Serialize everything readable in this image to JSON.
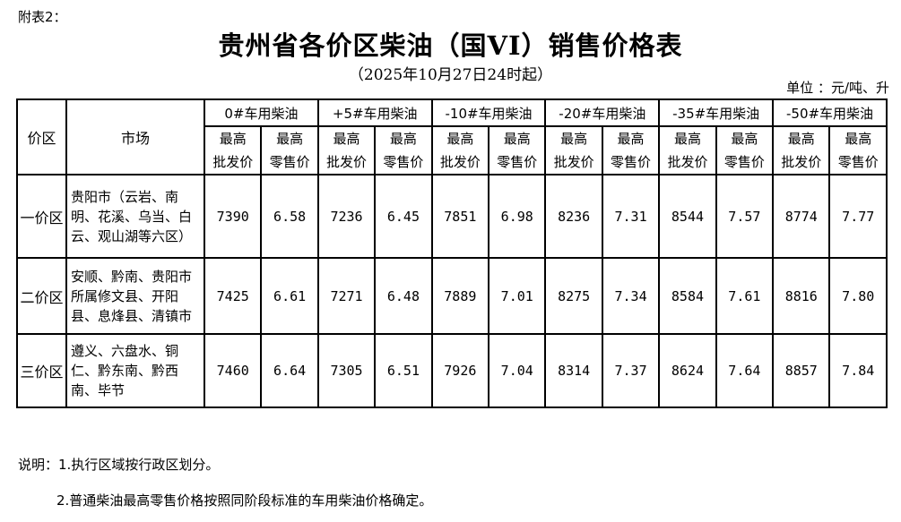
{
  "page": {
    "appendix_label": "附表2：",
    "title": "贵州省各价区柴油（国VI）销售价格表",
    "subtitle": "（2025年10月27日24时起）",
    "unit_label": "单位 ：元/吨、升"
  },
  "table": {
    "headers": {
      "zone": "价区",
      "market": "市场",
      "fuel_types": [
        "0#车用柴油",
        "+5#车用柴油",
        "-10#车用柴油",
        "-20#车用柴油",
        "-35#车用柴油",
        "-50#车用柴油"
      ],
      "sub_wholesale": "最高\n批发价",
      "sub_retail": "最高\n零售价"
    },
    "rows": [
      {
        "zone": "一价区",
        "market": "贵阳市（云岩、南明、花溪、乌当、白云、观山湖等六区）",
        "values": [
          "7390",
          "6.58",
          "7236",
          "6.45",
          "7851",
          "6.98",
          "8236",
          "7.31",
          "8544",
          "7.57",
          "8774",
          "7.77"
        ]
      },
      {
        "zone": "二价区",
        "market": "安顺、黔南、贵阳市所属修文县、开阳县、息烽县、清镇市",
        "values": [
          "7425",
          "6.61",
          "7271",
          "6.48",
          "7889",
          "7.01",
          "8275",
          "7.34",
          "8584",
          "7.61",
          "8816",
          "7.80"
        ]
      },
      {
        "zone": "三价区",
        "market": "遵义、六盘水、铜仁、黔东南、黔西南、毕节",
        "values": [
          "7460",
          "6.64",
          "7305",
          "6.51",
          "7926",
          "7.04",
          "8314",
          "7.37",
          "8624",
          "7.64",
          "8857",
          "7.84"
        ]
      }
    ]
  },
  "notes": {
    "prefix": "说明：",
    "item1": "1.执行区域按行政区划分。",
    "item2": "2.普通柴油最高零售价格按照同阶段标准的车用柴油价格确定。"
  }
}
